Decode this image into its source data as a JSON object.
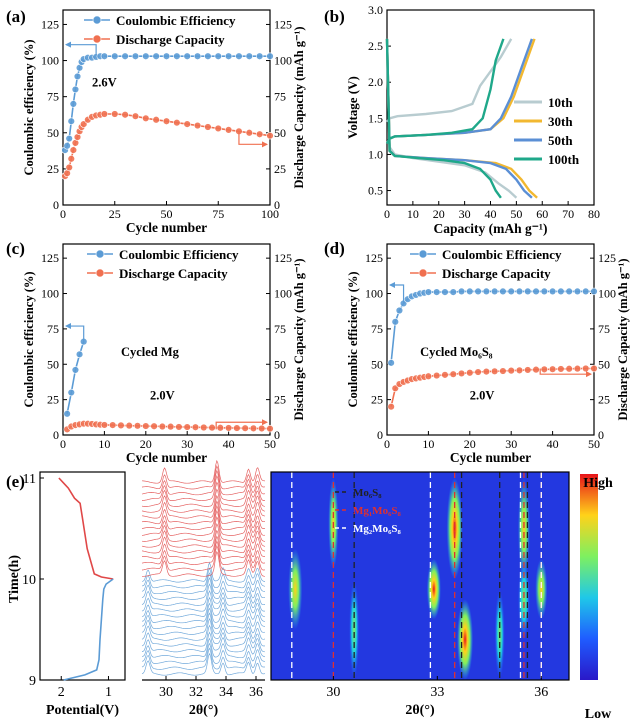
{
  "chart_data": [
    {
      "panel": "(a)",
      "type": "scatter",
      "xlabel": "Cycle number",
      "ylabel": "Coulombic efficiency (%)",
      "y2label": "Discharge Capacity (mAh g⁻¹)",
      "xlim": [
        0,
        100
      ],
      "ylim": [
        0,
        135
      ],
      "y2lim": [
        0,
        135
      ],
      "xticks": [
        "0",
        "25",
        "50",
        "75",
        "100"
      ],
      "yticks": [
        "0",
        "25",
        "50",
        "75",
        "100",
        "125"
      ],
      "y2ticks": [
        "0",
        "25",
        "50",
        "75",
        "100",
        "125"
      ],
      "annotation": "2.6V",
      "legend": {
        "placement": "top-left",
        "entries": [
          "Coulombic Efficiency",
          "Discharge Capacity"
        ]
      },
      "series": [
        {
          "name": "Coulombic Efficiency",
          "color": "#5b9bd5",
          "axis": "left",
          "x": [
            1,
            2,
            3,
            4,
            5,
            6,
            7,
            8,
            9,
            10,
            12,
            14,
            16,
            18,
            20,
            25,
            30,
            35,
            40,
            45,
            50,
            55,
            60,
            65,
            70,
            75,
            80,
            85,
            90,
            95,
            100
          ],
          "values": [
            38,
            41,
            46,
            58,
            70,
            80,
            89,
            95,
            99,
            101,
            102,
            102,
            102.5,
            103,
            103,
            103,
            103,
            103,
            103,
            103,
            103,
            103,
            103,
            103,
            103,
            103,
            103,
            103,
            103,
            103,
            103
          ]
        },
        {
          "name": "Discharge Capacity",
          "color": "#f07050",
          "axis": "right",
          "x": [
            1,
            2,
            3,
            4,
            5,
            6,
            7,
            8,
            9,
            10,
            12,
            14,
            16,
            18,
            20,
            25,
            30,
            35,
            40,
            45,
            50,
            55,
            60,
            65,
            70,
            75,
            80,
            85,
            90,
            95,
            100
          ],
          "values": [
            20,
            22,
            26,
            32,
            38,
            43,
            47,
            51,
            54,
            56,
            59,
            61,
            62,
            62.5,
            63,
            63,
            62.5,
            61.5,
            60,
            59,
            58,
            57,
            56,
            55,
            54,
            53,
            52,
            51,
            50,
            49,
            48
          ]
        }
      ]
    },
    {
      "panel": "(b)",
      "type": "line",
      "xlabel": "Capacity (mAh g⁻¹)",
      "ylabel": "Voltage (V)",
      "xlim": [
        0,
        80
      ],
      "ylim": [
        0.3,
        3.0
      ],
      "xticks": [
        "0",
        "10",
        "20",
        "30",
        "40",
        "50",
        "60",
        "70",
        "80"
      ],
      "yticks": [
        "0.5",
        "1.0",
        "1.5",
        "2.0",
        "2.5",
        "3.0"
      ],
      "legend": {
        "placement": "right",
        "entries": [
          "10th",
          "30th",
          "50th",
          "100th"
        ]
      },
      "series": [
        {
          "name": "10th",
          "color": "#b8ccd0",
          "charge": {
            "x": [
              0,
              1,
              4,
              15,
              25,
              33,
              36,
              40,
              44,
              48
            ],
            "values": [
              1.45,
              1.5,
              1.53,
              1.56,
              1.6,
              1.7,
              1.95,
              2.15,
              2.35,
              2.6
            ]
          },
          "discharge": {
            "x": [
              0,
              1,
              3,
              10,
              20,
              30,
              38,
              43,
              47,
              50
            ],
            "values": [
              2.6,
              1.1,
              1.0,
              0.95,
              0.9,
              0.85,
              0.75,
              0.6,
              0.5,
              0.4
            ]
          }
        },
        {
          "name": "30th",
          "color": "#f2b830",
          "charge": {
            "x": [
              0,
              1,
              3,
              15,
              30,
              40,
              45,
              49,
              53,
              57
            ],
            "values": [
              1.15,
              1.22,
              1.25,
              1.27,
              1.3,
              1.35,
              1.5,
              1.8,
              2.2,
              2.6
            ]
          },
          "discharge": {
            "x": [
              0,
              1,
              3,
              15,
              30,
              42,
              48,
              52,
              55,
              58
            ],
            "values": [
              2.6,
              1.05,
              0.98,
              0.95,
              0.92,
              0.88,
              0.8,
              0.65,
              0.5,
              0.4
            ]
          }
        },
        {
          "name": "50th",
          "color": "#5b8fd5",
          "charge": {
            "x": [
              0,
              1,
              3,
              15,
              30,
              40,
              44,
              48,
              52,
              56
            ],
            "values": [
              1.15,
              1.22,
              1.25,
              1.27,
              1.3,
              1.35,
              1.5,
              1.8,
              2.2,
              2.6
            ]
          },
          "discharge": {
            "x": [
              0,
              1,
              3,
              15,
              30,
              40,
              46,
              50,
              53,
              56
            ],
            "values": [
              2.6,
              1.05,
              0.98,
              0.95,
              0.92,
              0.88,
              0.8,
              0.65,
              0.5,
              0.4
            ]
          }
        },
        {
          "name": "100th",
          "color": "#1fa88a",
          "charge": {
            "x": [
              0,
              1,
              3,
              15,
              25,
              33,
              37,
              40,
              42,
              45
            ],
            "values": [
              1.15,
              1.22,
              1.25,
              1.27,
              1.3,
              1.35,
              1.5,
              1.9,
              2.3,
              2.6
            ]
          },
          "discharge": {
            "x": [
              0,
              1,
              3,
              12,
              22,
              30,
              36,
              40,
              42,
              44
            ],
            "values": [
              2.6,
              1.05,
              0.98,
              0.95,
              0.92,
              0.88,
              0.8,
              0.65,
              0.5,
              0.4
            ]
          }
        }
      ]
    },
    {
      "panel": "(c)",
      "type": "scatter",
      "xlabel": "Cycle number",
      "ylabel": "Coulombic efficiency (%)",
      "y2label": "Discharge Capacity (mAh g⁻¹)",
      "xlim": [
        0,
        50
      ],
      "ylim": [
        0,
        135
      ],
      "y2lim": [
        0,
        135
      ],
      "xticks": [
        "0",
        "10",
        "20",
        "30",
        "40",
        "50"
      ],
      "yticks": [
        "0",
        "25",
        "50",
        "75",
        "100",
        "125"
      ],
      "y2ticks": [
        "0",
        "25",
        "50",
        "75",
        "100",
        "125"
      ],
      "annotations": [
        "Cycled Mg",
        "2.0V"
      ],
      "legend": {
        "placement": "top",
        "entries": [
          "Coulombic Efficiency",
          "Discharge Capacity"
        ]
      },
      "series": [
        {
          "name": "Coulombic Efficiency",
          "color": "#5b9bd5",
          "axis": "left",
          "x": [
            1,
            2,
            3,
            4,
            5
          ],
          "values": [
            15,
            30,
            46,
            57,
            66
          ]
        },
        {
          "name": "Discharge Capacity",
          "color": "#f07050",
          "axis": "right",
          "x": [
            1,
            2,
            3,
            4,
            5,
            6,
            7,
            8,
            9,
            10,
            12,
            14,
            16,
            18,
            20,
            22,
            24,
            26,
            28,
            30,
            32,
            34,
            36,
            38,
            40,
            42,
            44,
            46,
            48,
            50
          ],
          "values": [
            4,
            6,
            7,
            7.5,
            8,
            8,
            7.8,
            7.5,
            7.3,
            7.1,
            7,
            6.8,
            6.6,
            6.5,
            6.3,
            6.2,
            6,
            5.9,
            5.7,
            5.6,
            5.5,
            5.3,
            5.2,
            5.1,
            5,
            4.9,
            4.8,
            4.7,
            4.6,
            4.5
          ]
        }
      ]
    },
    {
      "panel": "(d)",
      "type": "scatter",
      "xlabel": "Cycle number",
      "ylabel": "Coulombic efficiency (%)",
      "y2label": "Discharge Capacity (mAh g⁻¹)",
      "xlim": [
        0,
        50
      ],
      "ylim": [
        0,
        135
      ],
      "y2lim": [
        0,
        135
      ],
      "xticks": [
        "0",
        "10",
        "20",
        "30",
        "40",
        "50"
      ],
      "yticks": [
        "0",
        "25",
        "50",
        "75",
        "100",
        "125"
      ],
      "y2ticks": [
        "0",
        "25",
        "50",
        "75",
        "100",
        "125"
      ],
      "annotations": [
        "Cycled Mo₆S₈",
        "2.0V"
      ],
      "legend": {
        "placement": "top",
        "entries": [
          "Coulombic Efficiency",
          "Discharge Capacity"
        ]
      },
      "series": [
        {
          "name": "Coulombic Efficiency",
          "color": "#5b9bd5",
          "axis": "left",
          "x": [
            1,
            2,
            3,
            4,
            5,
            6,
            7,
            8,
            9,
            10,
            12,
            14,
            16,
            18,
            20,
            22,
            24,
            26,
            28,
            30,
            32,
            34,
            36,
            38,
            40,
            42,
            44,
            46,
            48,
            50
          ],
          "values": [
            51,
            80,
            88,
            93,
            96,
            98,
            99,
            100,
            100.5,
            101,
            101,
            101,
            101,
            101.5,
            101.5,
            101.5,
            101.5,
            101.5,
            101.5,
            101.5,
            101.5,
            101.5,
            101.5,
            101.5,
            101.5,
            101.5,
            101.5,
            101.5,
            101.5,
            101.5
          ]
        },
        {
          "name": "Discharge Capacity",
          "color": "#f07050",
          "axis": "right",
          "x": [
            1,
            2,
            3,
            4,
            5,
            6,
            7,
            8,
            9,
            10,
            12,
            14,
            16,
            18,
            20,
            22,
            24,
            26,
            28,
            30,
            32,
            34,
            36,
            38,
            40,
            42,
            44,
            46,
            48,
            50
          ],
          "values": [
            20,
            33,
            36,
            37.5,
            38.5,
            39.5,
            40,
            40.5,
            41,
            41.5,
            42,
            42.5,
            43,
            43.5,
            44,
            44.5,
            44.8,
            45,
            45.2,
            45.5,
            45.7,
            46,
            46.2,
            46.4,
            46.5,
            46.7,
            46.8,
            46.9,
            47,
            47
          ]
        }
      ]
    },
    {
      "panel": "(e)",
      "type": "heatmap",
      "subplots": {
        "potential": {
          "xlabel": "Potential(V)",
          "ylabel": "Time(h)",
          "xticks": [
            "2",
            "1"
          ],
          "yticks": [
            "9",
            "10",
            "11"
          ],
          "discharge": {
            "color": "#e04848",
            "time": [
              11.0,
              10.95,
              10.9,
              10.8,
              10.75,
              10.6,
              10.3,
              10.05,
              10.02,
              10.0
            ],
            "potential": [
              2.05,
              1.95,
              1.85,
              1.72,
              1.6,
              1.55,
              1.45,
              1.3,
              1.15,
              0.9
            ]
          },
          "charge": {
            "color": "#5b9bd5",
            "time": [
              10.0,
              9.95,
              9.9,
              9.8,
              9.6,
              9.4,
              9.2,
              9.1,
              9.05,
              9.0
            ],
            "potential": [
              0.9,
              1.05,
              1.1,
              1.12,
              1.15,
              1.18,
              1.2,
              1.25,
              1.5,
              1.95
            ]
          }
        },
        "xrd_stack": {
          "xlabel": "2θ(°)",
          "xticks": [
            "30",
            "32",
            "34",
            "36"
          ],
          "discharge_color": "#e04848",
          "charge_color": "#5b9bd5",
          "discharge_peaks_2theta": [
            29.9,
            33.4,
            35.5,
            36.1
          ],
          "charge_peaks_2theta": [
            28.8,
            32.9,
            33.8,
            35.5,
            36.1
          ]
        },
        "contour": {
          "xlabel": "2θ(°)",
          "xticks": [
            "30",
            "33",
            "36"
          ],
          "xlim": [
            28.2,
            36.8
          ],
          "colorbar": {
            "high_label": "High",
            "low_label": "Low"
          },
          "legend": [
            "Mo₆S₈",
            "Mg₁Mo₆S₈",
            "Mg₂Mo₆S₈"
          ],
          "reference_lines": {
            "Mo₆S₈": {
              "color": "#222222",
              "two_theta": [
                30.6,
                33.7,
                34.8,
                35.6
              ]
            },
            "Mg₁Mo₆S₈": {
              "color": "#e03030",
              "two_theta": [
                30.0,
                33.5,
                35.5,
                36.0
              ]
            },
            "Mg₂Mo₆S₈": {
              "color": "#ffffff",
              "two_theta": [
                28.8,
                32.8,
                35.4,
                36.0
              ]
            }
          }
        }
      }
    }
  ],
  "labels": {
    "panel_a": "(a)",
    "panel_b": "(b)",
    "panel_c": "(c)",
    "panel_d": "(d)",
    "panel_e": "(e)"
  }
}
